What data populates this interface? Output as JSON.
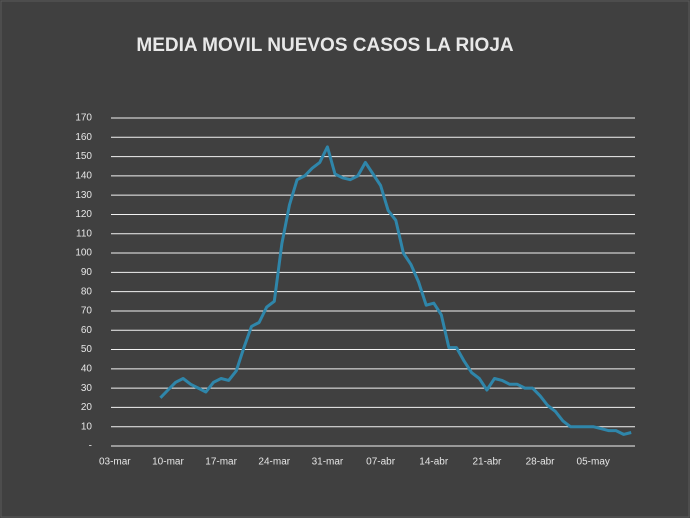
{
  "chart_data": {
    "type": "line",
    "title": "MEDIA MOVIL NUEVOS CASOS LA RIOJA",
    "categories": [
      "03-mar",
      null,
      null,
      null,
      null,
      null,
      null,
      "10-mar",
      null,
      null,
      null,
      null,
      null,
      null,
      "17-mar",
      null,
      null,
      null,
      null,
      null,
      null,
      "24-mar",
      null,
      null,
      null,
      null,
      null,
      null,
      "31-mar",
      null,
      null,
      null,
      null,
      null,
      null,
      "07-abr",
      null,
      null,
      null,
      null,
      null,
      null,
      "14-abr",
      null,
      null,
      null,
      null,
      null,
      null,
      "21-abr",
      null,
      null,
      null,
      null,
      null,
      null,
      "28-abr",
      null,
      null,
      null,
      null,
      null,
      null,
      "05-may",
      null,
      null,
      null,
      null,
      null
    ],
    "series": [
      {
        "name": "Media movil",
        "color": "#2f86aa",
        "values": [
          null,
          null,
          null,
          null,
          null,
          null,
          25,
          29,
          33,
          35,
          32,
          30,
          28,
          33,
          35,
          34,
          39,
          51,
          62,
          64,
          72,
          75,
          105,
          125,
          138,
          140,
          144,
          147,
          155,
          141,
          139,
          138,
          140,
          147,
          141,
          135,
          122,
          117,
          100,
          94,
          85,
          73,
          74,
          68,
          51,
          51,
          44,
          38,
          35,
          29,
          35,
          34,
          32,
          32,
          30,
          30,
          26,
          21,
          18,
          13,
          10,
          10,
          10,
          10,
          9,
          8,
          8,
          6,
          7
        ]
      }
    ],
    "ylim": [
      0,
      170
    ],
    "yticks": [
      {
        "value": 0,
        "label": "-"
      },
      10,
      20,
      30,
      40,
      50,
      60,
      70,
      80,
      90,
      100,
      110,
      120,
      130,
      140,
      150,
      160,
      170
    ],
    "grid": true
  }
}
